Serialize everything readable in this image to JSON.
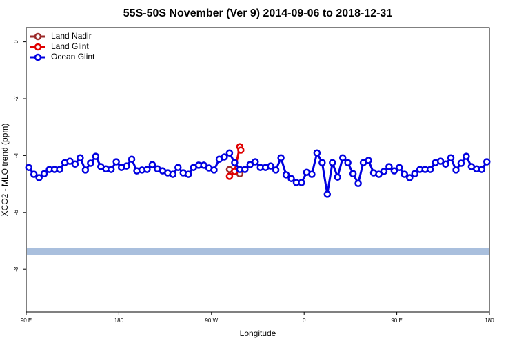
{
  "chart_data": {
    "type": "line",
    "title": "55S-50S November (Ver 9)   2014-09-06 to 2018-12-31",
    "x_label": "Longitude",
    "y_label": "XCO2 - MLO trend (ppm)",
    "xlim": [
      90,
      540
    ],
    "ylim": [
      -9.5,
      0.5
    ],
    "xticks": [
      {
        "value": 90,
        "label": "90 E"
      },
      180,
      {
        "value": 270,
        "label": "90 W"
      },
      {
        "value": 360,
        "label": "0"
      },
      {
        "value": 450,
        "label": "90 E"
      },
      {
        "value": 540,
        "label": "180"
      }
    ],
    "yticks": [
      0,
      -2,
      -4,
      -6,
      -8
    ],
    "legend": "top-left",
    "band": {
      "range": [
        -7.26,
        -7.5
      ],
      "color": "#a9bfdd"
    },
    "series": [
      {
        "name": "Land Nadir",
        "color": "#9b2a2a",
        "x": [
          287.5,
          292.5,
          297.5
        ],
        "values": [
          -4.49,
          -4.56,
          -4.64
        ]
      },
      {
        "name": "Land Glint",
        "color": "#e00000",
        "x": [
          287.5,
          292.5,
          297.5,
          298.5
        ],
        "values": [
          -4.73,
          -4.56,
          -3.69,
          -3.81
        ]
      },
      {
        "name": "Ocean Glint",
        "color": "#0000e0",
        "x": [
          92.5,
          97.5,
          102.5,
          107.5,
          112.5,
          117.5,
          122.5,
          127.5,
          132.5,
          137.5,
          142.5,
          147.5,
          152.5,
          157.5,
          162.5,
          167.5,
          172.5,
          177.5,
          182.5,
          187.5,
          192.5,
          197.5,
          202.5,
          207.5,
          212.5,
          217.5,
          222.5,
          227.5,
          232.5,
          237.5,
          242.5,
          247.5,
          252.5,
          257.5,
          262.5,
          267.5,
          272.5,
          277.5,
          282.5,
          287.5,
          292.5,
          297.5,
          302.5,
          307.5,
          312.5,
          317.5,
          322.5,
          327.5,
          332.5,
          337.5,
          342.5,
          347.5,
          352.5,
          357.5,
          362.5,
          367.5,
          372.5,
          377.5,
          382.5,
          387.5,
          392.5,
          397.5,
          402.5,
          407.5,
          412.5,
          417.5,
          422.5,
          427.5,
          432.5,
          437.5,
          442.5,
          447.5,
          452.5,
          457.5,
          462.5,
          467.5,
          472.5,
          477.5,
          482.5,
          487.5,
          492.5,
          497.5,
          502.5,
          507.5,
          512.5,
          517.5,
          522.5,
          527.5,
          532.5,
          537.5
        ],
        "values": [
          -4.42,
          -4.66,
          -4.78,
          -4.64,
          -4.49,
          -4.49,
          -4.49,
          -4.25,
          -4.2,
          -4.3,
          -4.08,
          -4.51,
          -4.27,
          -4.03,
          -4.39,
          -4.47,
          -4.49,
          -4.22,
          -4.42,
          -4.37,
          -4.13,
          -4.54,
          -4.51,
          -4.49,
          -4.32,
          -4.47,
          -4.54,
          -4.61,
          -4.66,
          -4.42,
          -4.61,
          -4.66,
          -4.42,
          -4.34,
          -4.34,
          -4.44,
          -4.51,
          -4.13,
          -4.05,
          -3.91,
          -4.25,
          -4.49,
          -4.49,
          -4.32,
          -4.22,
          -4.42,
          -4.42,
          -4.37,
          -4.51,
          -4.08,
          -4.68,
          -4.81,
          -4.95,
          -4.95,
          -4.59,
          -4.66,
          -3.91,
          -4.25,
          -5.36,
          -4.25,
          -4.76,
          -4.08,
          -4.25,
          -4.64,
          -4.98,
          -4.25,
          -4.17,
          -4.61,
          -4.66,
          -4.56,
          -4.39,
          -4.54,
          -4.42,
          -4.66,
          -4.78,
          -4.64,
          -4.49,
          -4.49,
          -4.49,
          -4.25,
          -4.2,
          -4.3,
          -4.08,
          -4.51,
          -4.27,
          -4.03,
          -4.39,
          -4.47,
          -4.49,
          -4.22
        ]
      }
    ]
  }
}
